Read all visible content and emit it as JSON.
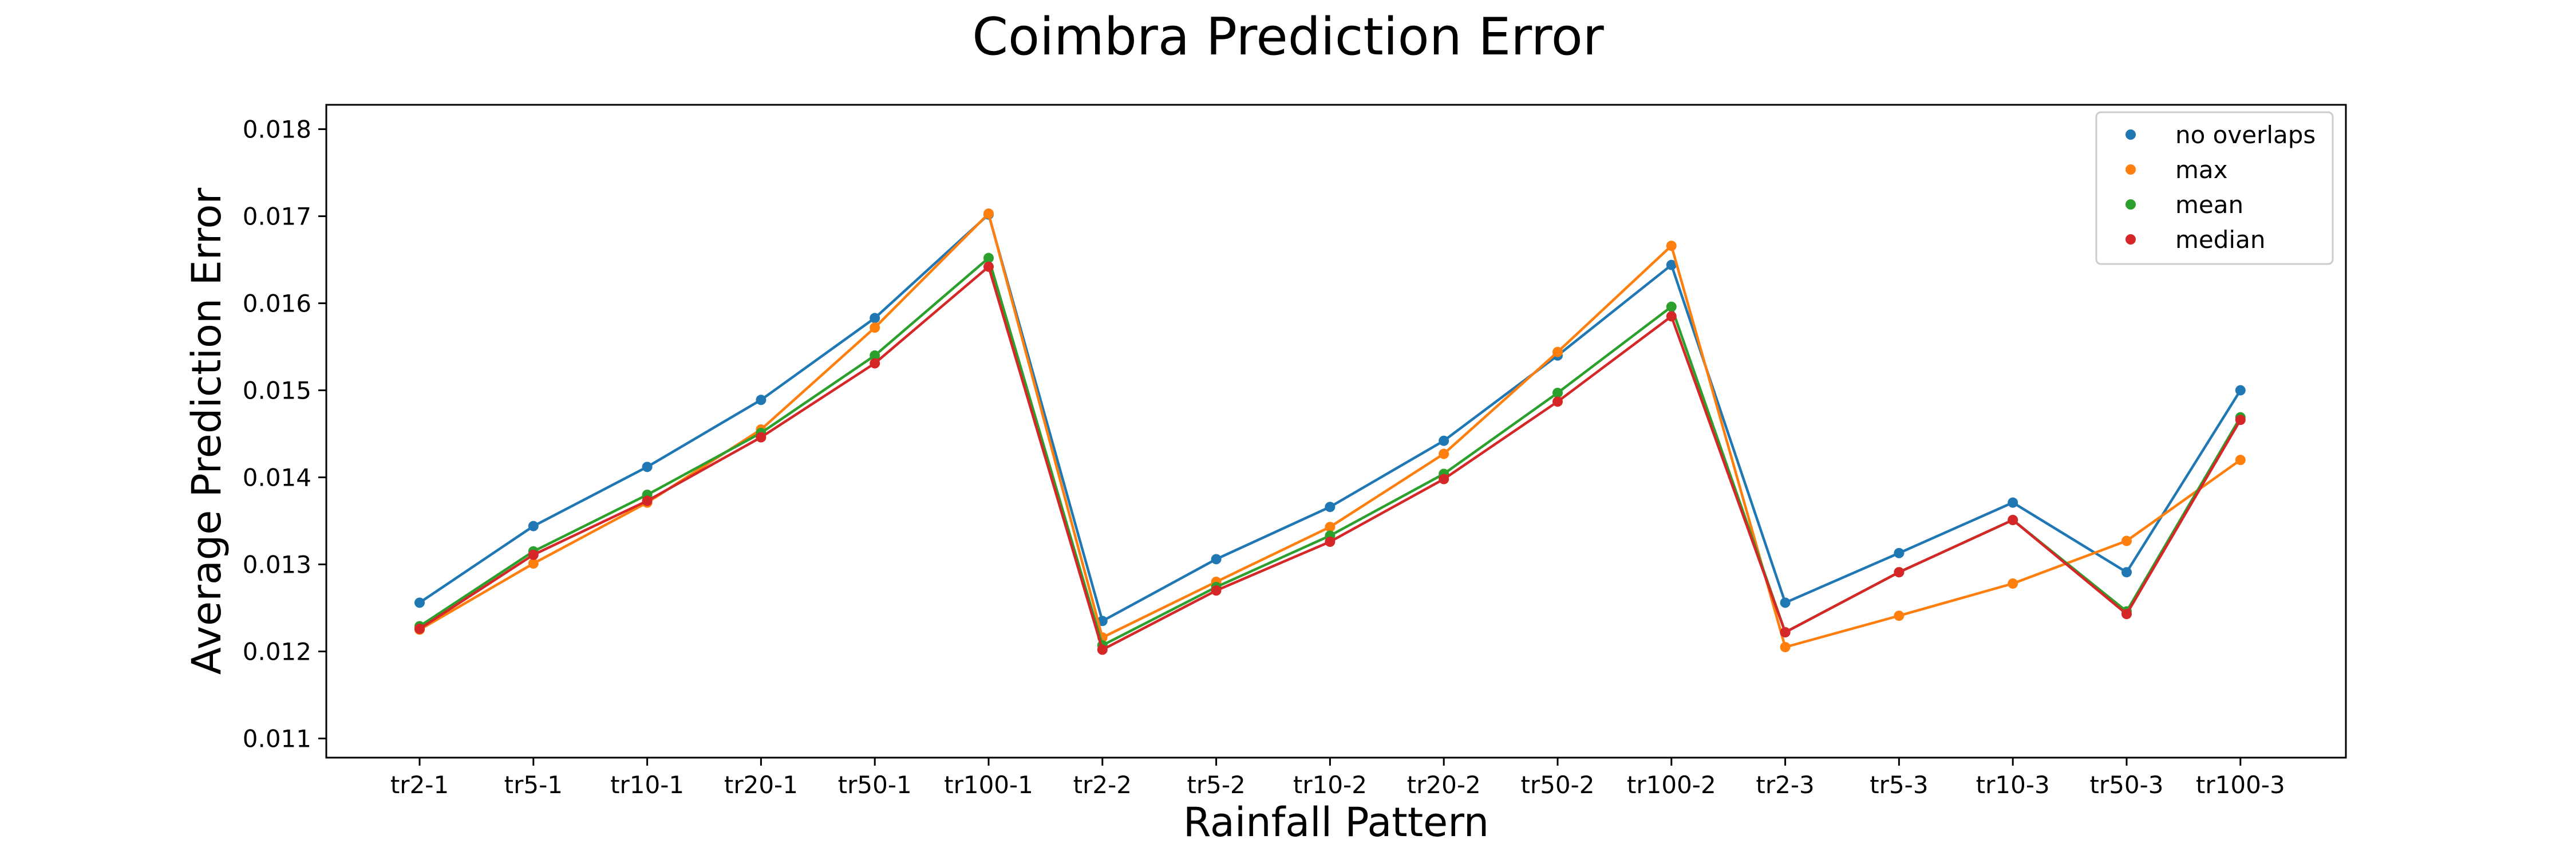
{
  "chart_data": {
    "type": "line",
    "title": "Coimbra Prediction Error",
    "xlabel": "Rainfall Pattern",
    "ylabel": "Average Prediction Error",
    "categories": [
      "tr2-1",
      "tr5-1",
      "tr10-1",
      "tr20-1",
      "tr50-1",
      "tr100-1",
      "tr2-2",
      "tr5-2",
      "tr10-2",
      "tr20-2",
      "tr50-2",
      "tr100-2",
      "tr2-3",
      "tr5-3",
      "tr10-3",
      "tr50-3",
      "tr100-3"
    ],
    "ylim": [
      0.01078,
      0.01828
    ],
    "yticks": [
      0.011,
      0.012,
      0.013,
      0.014,
      0.015,
      0.016,
      0.017,
      0.018
    ],
    "ytick_labels": [
      "0.011",
      "0.012",
      "0.013",
      "0.014",
      "0.015",
      "0.016",
      "0.017",
      "0.018"
    ],
    "grid": false,
    "legend_position": "upper right",
    "series": [
      {
        "name": "no overlaps",
        "color": "#1f77b4",
        "values": [
          0.01256,
          0.01344,
          0.01412,
          0.01489,
          0.01583,
          0.01702,
          0.01235,
          0.01306,
          0.01366,
          0.01442,
          0.0154,
          0.01644,
          0.01256,
          0.01313,
          0.01371,
          0.01291,
          0.015
        ]
      },
      {
        "name": "max",
        "color": "#ff7f0e",
        "values": [
          0.01225,
          0.01301,
          0.01371,
          0.01455,
          0.01572,
          0.01703,
          0.01216,
          0.0128,
          0.01343,
          0.01427,
          0.01544,
          0.01666,
          0.01205,
          0.01241,
          0.01278,
          0.01327,
          0.0142
        ]
      },
      {
        "name": "mean",
        "color": "#2ca02c",
        "values": [
          0.01229,
          0.01315,
          0.0138,
          0.01451,
          0.0154,
          0.01652,
          0.01207,
          0.01274,
          0.01333,
          0.01404,
          0.01497,
          0.01596,
          0.01222,
          0.01291,
          0.01351,
          0.01246,
          0.01469
        ]
      },
      {
        "name": "median",
        "color": "#d62728",
        "values": [
          0.01226,
          0.01311,
          0.01373,
          0.01446,
          0.01531,
          0.01642,
          0.01202,
          0.0127,
          0.01326,
          0.01398,
          0.01487,
          0.01585,
          0.01222,
          0.01291,
          0.01351,
          0.01243,
          0.01466
        ]
      }
    ]
  }
}
